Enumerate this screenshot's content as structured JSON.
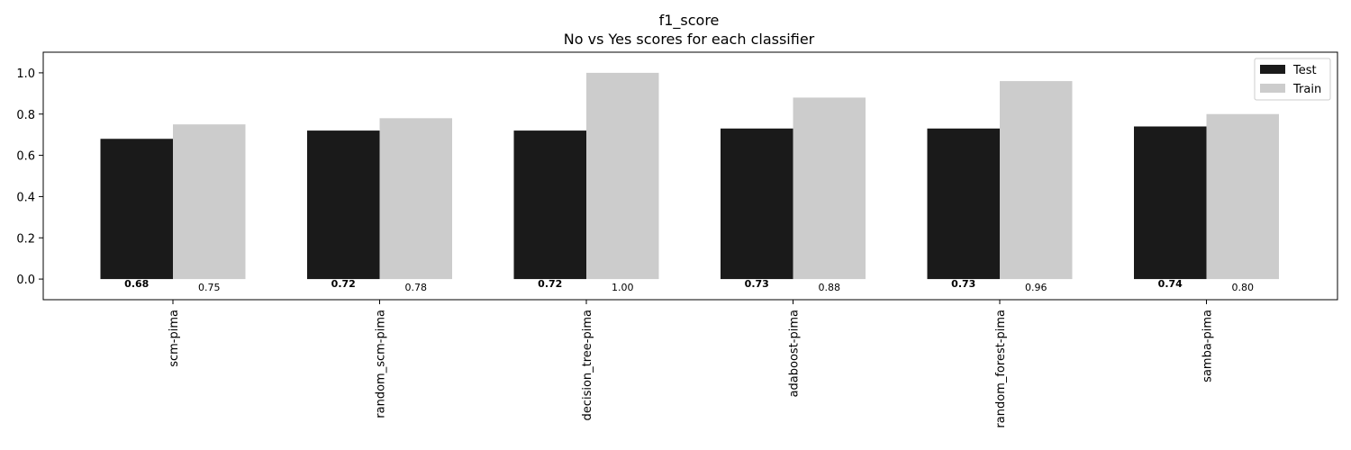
{
  "chart_data": {
    "type": "bar",
    "title": "f1_score",
    "subtitle": "No vs Yes scores for each classifier",
    "xlabel": "",
    "ylabel": "",
    "ylim": [
      -0.1,
      1.1
    ],
    "yticks": [
      "0.0",
      "0.2",
      "0.4",
      "0.6",
      "0.8",
      "1.0"
    ],
    "grid": false,
    "legend_position": "top-right",
    "categories": [
      "scm-pima",
      "random_scm-pima",
      "decision_tree-pima",
      "adaboost-pima",
      "random_forest-pima",
      "samba-pima"
    ],
    "series": [
      {
        "name": "Test",
        "color": "#1a1a1a",
        "values": [
          0.68,
          0.72,
          0.72,
          0.73,
          0.73,
          0.74
        ],
        "labels": [
          "0.68",
          "0.72",
          "0.72",
          "0.73",
          "0.73",
          "0.74"
        ]
      },
      {
        "name": "Train",
        "color": "#cccccc",
        "values": [
          0.75,
          0.78,
          1.0,
          0.88,
          0.96,
          0.8
        ],
        "labels": [
          "0.75",
          "0.78",
          "1.00",
          "0.88",
          "0.96",
          "0.80"
        ]
      }
    ]
  }
}
